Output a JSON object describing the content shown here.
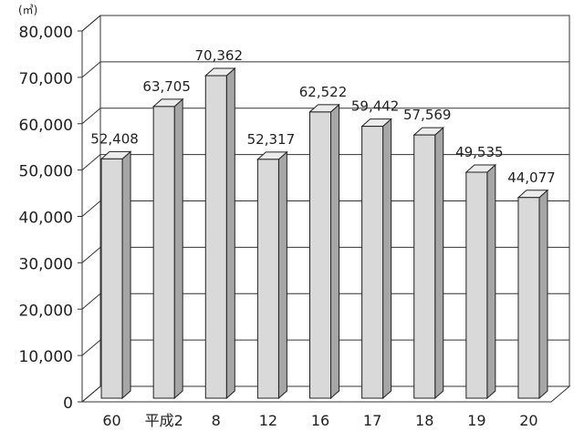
{
  "chart_data": {
    "type": "bar",
    "unit": "(㎥)",
    "categories": [
      "60",
      "平成2",
      "8",
      "12",
      "16",
      "17",
      "18",
      "19",
      "20"
    ],
    "values": [
      52408,
      63705,
      70362,
      52317,
      62522,
      59442,
      57569,
      49535,
      44077
    ],
    "value_labels": [
      "52,408",
      "63,705",
      "70,362",
      "52,317",
      "62,522",
      "59,442",
      "57,569",
      "49,535",
      "44,077"
    ],
    "y_ticks": [
      0,
      10000,
      20000,
      30000,
      40000,
      50000,
      60000,
      70000,
      80000
    ],
    "y_tick_labels": [
      "0",
      "10,000",
      "20,000",
      "30,000",
      "40,000",
      "50,000",
      "60,000",
      "70,000",
      "80,000"
    ],
    "ylim": [
      0,
      80000
    ],
    "grid": true,
    "legend": "none",
    "colors": {
      "bar_front": "#d9d9d9",
      "bar_side": "#a6a6a6",
      "bar_top": "#ececec",
      "stroke": "#222222",
      "grid": "#333333"
    }
  }
}
